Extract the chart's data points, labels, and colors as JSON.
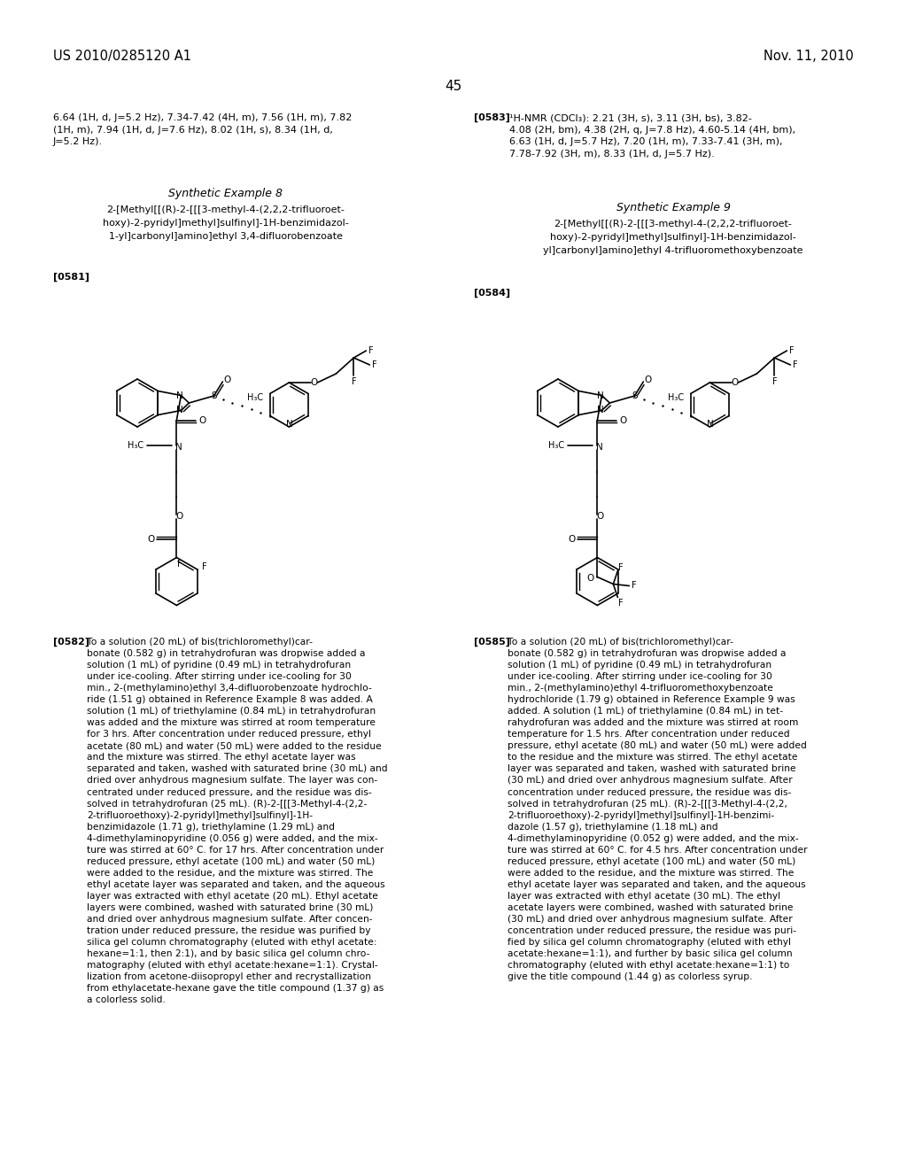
{
  "background_color": "#ffffff",
  "header_left": "US 2010/0285120 A1",
  "header_right": "Nov. 11, 2010",
  "page_number": "45",
  "text_color": "#000000",
  "font_size_header": 10.5,
  "font_size_body": 8.0,
  "font_size_title": 9.0,
  "font_size_page": 11,
  "font_size_chem": 7.5,
  "nmr_text_left": "6.64 (1H, d, J=5.2 Hz), 7.34-7.42 (4H, m), 7.56 (1H, m), 7.82\n(1H, m), 7.94 (1H, d, J=7.6 Hz), 8.02 (1H, s), 8.34 (1H, d,\nJ=5.2 Hz).",
  "nmr_ref_right": "[0583]",
  "nmr_text_right": "¹H-NMR (CDCl₃): 2.21 (3H, s), 3.11 (3H, bs), 3.82-\n4.08 (2H, bm), 4.38 (2H, q, J=7.8 Hz), 4.60-5.14 (4H, bm),\n6.63 (1H, d, J=5.7 Hz), 7.20 (1H, m), 7.33-7.41 (3H, m),\n7.78-7.92 (3H, m), 8.33 (1H, d, J=5.7 Hz).",
  "synth_example_8": "Synthetic Example 8",
  "compound_name_8_line1": "2-[Methyl[[(R)-2-[[[3-methyl-4-(2,2,2-trifluoroet-",
  "compound_name_8_line2": "hoxy)-2-pyridyl]methyl]sulfinyl]-1H-benzimidazol-",
  "compound_name_8_line3": "1-yl]carbonyl]amino]ethyl 3,4-difluorobenzoate",
  "ref_581": "[0581]",
  "synth_example_9": "Synthetic Example 9",
  "compound_name_9_line1": "2-[Methyl[[(R)-2-[[[3-methyl-4-(2,2,2-trifluoroet-",
  "compound_name_9_line2": "hoxy)-2-pyridyl]methyl]sulfinyl]-1H-benzimidazol-",
  "compound_name_9_line3": "yl]carbonyl]amino]ethyl 4-trifluoromethoxybenzoate",
  "ref_584": "[0584]",
  "ref_582": "[0582]",
  "body_text_left": "To a solution (20 mL) of bis(trichloromethyl)car-\nbonate (0.582 g) in tetrahydrofuran was dropwise added a\nsolution (1 mL) of pyridine (0.49 mL) in tetrahydrofuran\nunder ice-cooling. After stirring under ice-cooling for 30\nmin., 2-(methylamino)ethyl 3,4-difluorobenzoate hydrochlo-\nride (1.51 g) obtained in Reference Example 8 was added. A\nsolution (1 mL) of triethylamine (0.84 mL) in tetrahydrofuran\nwas added and the mixture was stirred at room temperature\nfor 3 hrs. After concentration under reduced pressure, ethyl\nacetate (80 mL) and water (50 mL) were added to the residue\nand the mixture was stirred. The ethyl acetate layer was\nseparated and taken, washed with saturated brine (30 mL) and\ndried over anhydrous magnesium sulfate. The layer was con-\ncentrated under reduced pressure, and the residue was dis-\nsolved in tetrahydrofuran (25 mL). (R)-2-[[[3-Methyl-4-(2,2-\n2-trifluoroethoxy)-2-pyridyl]methyl]sulfinyl]-1H-\nbenzimidazole (1.71 g), triethylamine (1.29 mL) and\n4-dimethylaminopyridine (0.056 g) were added, and the mix-\nture was stirred at 60° C. for 17 hrs. After concentration under\nreduced pressure, ethyl acetate (100 mL) and water (50 mL)\nwere added to the residue, and the mixture was stirred. The\nethyl acetate layer was separated and taken, and the aqueous\nlayer was extracted with ethyl acetate (20 mL). Ethyl acetate\nlayers were combined, washed with saturated brine (30 mL)\nand dried over anhydrous magnesium sulfate. After concen-\ntration under reduced pressure, the residue was purified by\nsilica gel column chromatography (eluted with ethyl acetate:\nhexane=1:1, then 2:1), and by basic silica gel column chro-\nmatography (eluted with ethyl acetate:hexane=1:1). Crystal-\nlization from acetone-diisopropyl ether and recrystallization\nfrom ethylacetate-hexane gave the title compound (1.37 g) as\na colorless solid.",
  "ref_585": "[0585]",
  "body_text_right": "To a solution (20 mL) of bis(trichloromethyl)car-\nbonate (0.582 g) in tetrahydrofuran was dropwise added a\nsolution (1 mL) of pyridine (0.49 mL) in tetrahydrofuran\nunder ice-cooling. After stirring under ice-cooling for 30\nmin., 2-(methylamino)ethyl 4-trifluoromethoxybenzoate\nhydrochloride (1.79 g) obtained in Reference Example 9 was\nadded. A solution (1 mL) of triethylamine (0.84 mL) in tet-\nrahydrofuran was added and the mixture was stirred at room\ntemperature for 1.5 hrs. After concentration under reduced\npressure, ethyl acetate (80 mL) and water (50 mL) were added\nto the residue and the mixture was stirred. The ethyl acetate\nlayer was separated and taken, washed with saturated brine\n(30 mL) and dried over anhydrous magnesium sulfate. After\nconcentration under reduced pressure, the residue was dis-\nsolved in tetrahydrofuran (25 mL). (R)-2-[[[3-Methyl-4-(2,2,\n2-trifluoroethoxy)-2-pyridyl]methyl]sulfinyl]-1H-benzimi-\ndazole (1.57 g), triethylamine (1.18 mL) and\n4-dimethylaminopyridine (0.052 g) were added, and the mix-\nture was stirred at 60° C. for 4.5 hrs. After concentration under\nreduced pressure, ethyl acetate (100 mL) and water (50 mL)\nwere added to the residue, and the mixture was stirred. The\nethyl acetate layer was separated and taken, and the aqueous\nlayer was extracted with ethyl acetate (30 mL). The ethyl\nacetate layers were combined, washed with saturated brine\n(30 mL) and dried over anhydrous magnesium sulfate. After\nconcentration under reduced pressure, the residue was puri-\nfied by silica gel column chromatography (eluted with ethyl\nacetate:hexane=1:1), and further by basic silica gel column\nchromatography (eluted with ethyl acetate:hexane=1:1) to\ngive the title compound (1.44 g) as colorless syrup."
}
